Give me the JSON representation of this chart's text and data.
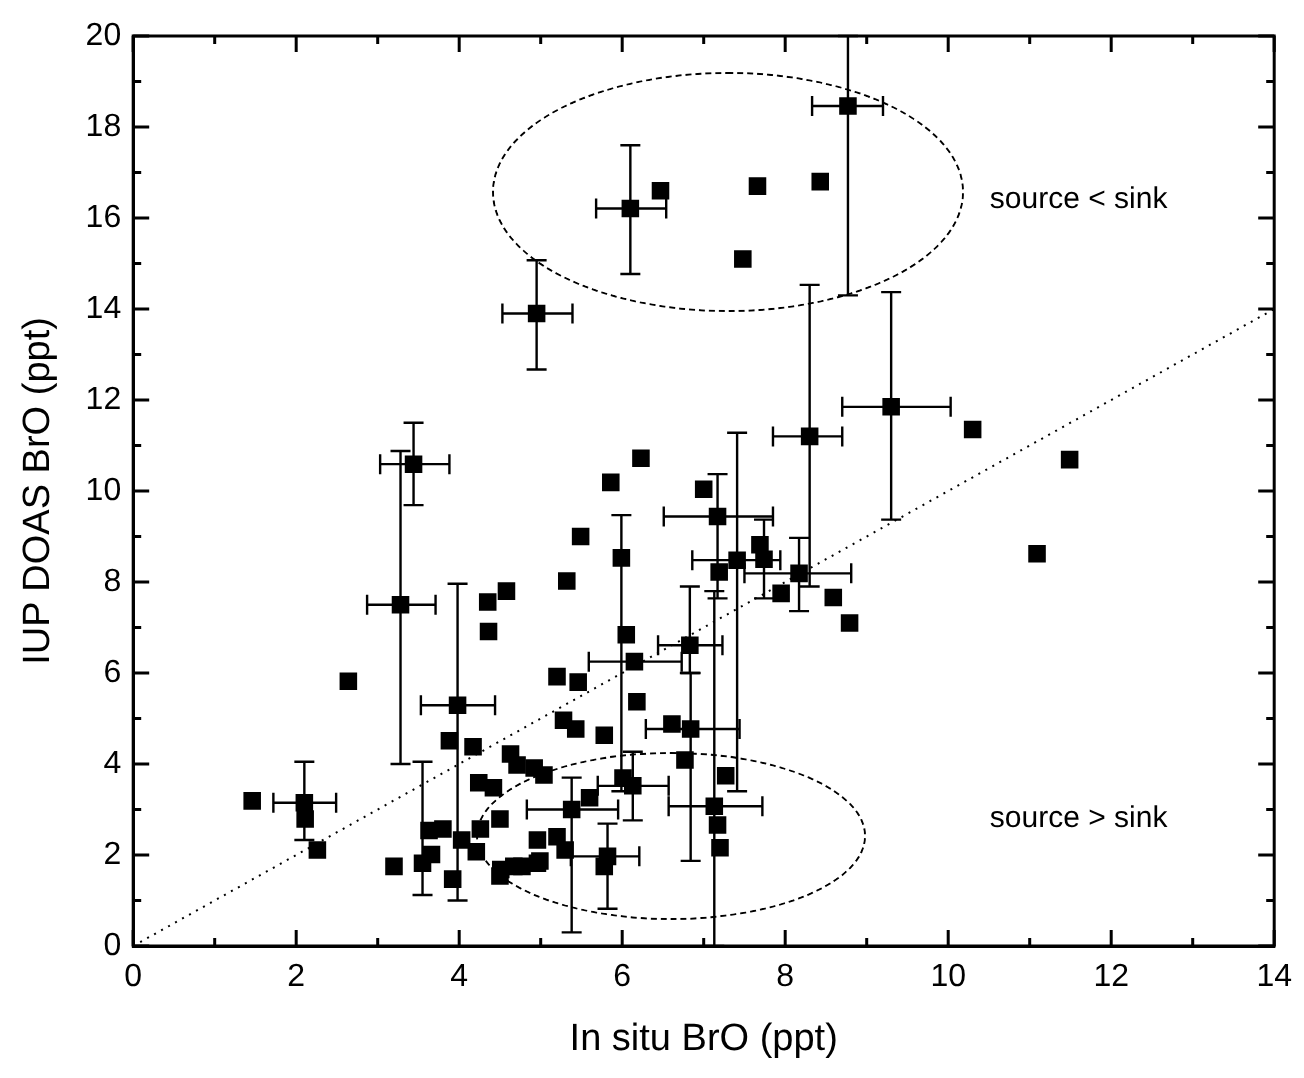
{
  "chart_data": {
    "type": "scatter",
    "xlabel": "In situ BrO (ppt)",
    "ylabel": "IUP DOAS BrO (ppt)",
    "xlim": [
      0,
      14
    ],
    "ylim": [
      0,
      20
    ],
    "xticks": [
      0,
      2,
      4,
      6,
      8,
      10,
      12,
      14
    ],
    "yticks": [
      0,
      2,
      4,
      6,
      8,
      10,
      12,
      14,
      16,
      18,
      20
    ],
    "grid": false,
    "legend": false,
    "annotations": [
      "source < sink",
      "source > sink"
    ],
    "series": [
      {
        "type": "scatter",
        "color": "#000000",
        "marker": "square",
        "x": [
          8.77,
          6.1,
          6.47,
          7.66,
          8.43,
          7.48,
          4.95,
          9.3,
          8.3,
          10.3,
          11.49,
          11.09,
          8.79,
          8.59,
          8.17,
          7.95,
          7.74,
          7.69,
          7.41,
          7.19,
          7.17,
          7.0,
          6.23,
          5.86,
          5.49,
          5.99,
          6.05,
          6.15,
          6.83,
          3.44,
          3.28,
          5.32,
          4.58,
          4.35,
          4.36,
          2.64,
          5.2,
          5.46,
          3.98,
          1.46,
          2.1,
          2.11,
          2.26,
          3.2,
          3.55,
          3.66,
          3.63,
          3.8,
          3.92,
          3.88,
          4.17,
          4.24,
          4.42,
          4.26,
          4.03,
          4.5,
          4.63,
          4.71,
          4.92,
          5.04,
          4.96,
          4.5,
          4.67,
          4.21,
          4.96,
          6.18,
          5.28,
          5.43,
          5.78,
          6.61,
          6.84,
          6.77,
          7.27,
          7.13,
          7.17,
          7.2,
          6.01,
          6.13,
          5.6,
          5.38,
          5.2,
          5.3,
          4.99,
          5.82,
          5.78,
          4.77,
          4.51
        ],
        "values": [
          18.46,
          16.21,
          16.6,
          16.7,
          16.8,
          15.1,
          13.9,
          11.85,
          11.2,
          11.35,
          10.69,
          8.62,
          7.1,
          7.66,
          8.19,
          7.75,
          8.5,
          8.82,
          8.48,
          8.22,
          9.44,
          10.04,
          10.72,
          10.19,
          9.0,
          8.53,
          6.84,
          6.25,
          6.61,
          10.59,
          7.5,
          8.02,
          7.8,
          7.56,
          6.91,
          5.82,
          5.92,
          5.8,
          5.29,
          3.19,
          3.15,
          2.79,
          2.11,
          1.75,
          1.82,
          2.01,
          2.54,
          2.57,
          1.47,
          4.51,
          4.38,
          3.59,
          3.48,
          2.57,
          2.33,
          2.79,
          4.22,
          3.98,
          3.91,
          3.76,
          2.33,
          1.54,
          1.75,
          2.07,
          1.82,
          5.37,
          4.96,
          4.77,
          4.63,
          4.88,
          4.77,
          4.09,
          3.74,
          3.07,
          2.66,
          2.16,
          3.69,
          3.52,
          3.26,
          3.0,
          2.4,
          2.11,
          1.87,
          1.97,
          1.75,
          1.75,
          1.68
        ],
        "errors": [
          [
            14.3,
            20
          ],
          [
            14.77,
            17.6
          ],
          null,
          null,
          null,
          null,
          [
            12.67,
            15.07
          ],
          [
            9.37,
            14.37
          ],
          [
            7.9,
            14.53
          ],
          null,
          null,
          null,
          null,
          null,
          [
            7.36,
            8.97
          ],
          null,
          [
            7.64,
            9.37
          ],
          null,
          [
            3.4,
            11.28
          ],
          null,
          [
            7.64,
            10.37
          ],
          null,
          null,
          null,
          null,
          [
            3.4,
            9.47
          ],
          null,
          null,
          [
            6.0,
            7.9
          ],
          [
            9.69,
            11.5
          ],
          [
            4.0,
            10.88
          ],
          null,
          null,
          null,
          null,
          null,
          null,
          null,
          [
            1.0,
            7.96
          ],
          null,
          [
            2.33,
            4.05
          ],
          null,
          null,
          null,
          [
            1.12,
            4.05
          ],
          null,
          null,
          null,
          null,
          null,
          null,
          null,
          null,
          null,
          null,
          null,
          null,
          null,
          null,
          null,
          null,
          null,
          null,
          null,
          null,
          null,
          null,
          null,
          null,
          null,
          [
            1.87,
            6.0
          ],
          null,
          null,
          [
            0,
            7.8
          ],
          null,
          null,
          null,
          [
            2.76,
            4.27
          ],
          null,
          [
            0.3,
            3.7
          ],
          null,
          null,
          null,
          [
            0.82,
            2.69
          ],
          null,
          null,
          null
        ],
        "xerrors": [
          [
            8.33,
            9.2
          ],
          [
            5.68,
            6.54
          ],
          null,
          null,
          null,
          null,
          [
            4.53,
            5.39
          ],
          [
            8.7,
            10.03
          ],
          [
            7.85,
            8.7
          ],
          null,
          null,
          null,
          null,
          null,
          [
            7.5,
            8.81
          ],
          null,
          null,
          null,
          [
            6.86,
            7.94
          ],
          null,
          [
            6.51,
            7.85
          ],
          null,
          null,
          null,
          null,
          null,
          null,
          [
            5.59,
            6.73
          ],
          [
            6.44,
            7.23
          ],
          [
            3.03,
            3.88
          ],
          [
            2.87,
            3.71
          ],
          null,
          null,
          null,
          null,
          null,
          null,
          null,
          [
            3.53,
            4.44
          ],
          null,
          [
            1.72,
            2.49
          ],
          null,
          null,
          null,
          null,
          null,
          null,
          null,
          null,
          null,
          null,
          null,
          null,
          null,
          null,
          null,
          null,
          null,
          null,
          null,
          null,
          null,
          null,
          null,
          null,
          null,
          null,
          null,
          null,
          null,
          [
            6.29,
            7.44
          ],
          null,
          null,
          [
            6.57,
            7.72
          ],
          null,
          null,
          null,
          [
            5.7,
            6.57
          ],
          null,
          [
            4.83,
            5.95
          ],
          null,
          null,
          null,
          [
            5.37,
            6.21
          ],
          null,
          null,
          null
        ]
      },
      {
        "type": "line",
        "color": "#000000",
        "line_style": "dotted",
        "marker": "none",
        "x": [
          0,
          14
        ],
        "values": [
          0,
          14
        ]
      }
    ]
  }
}
